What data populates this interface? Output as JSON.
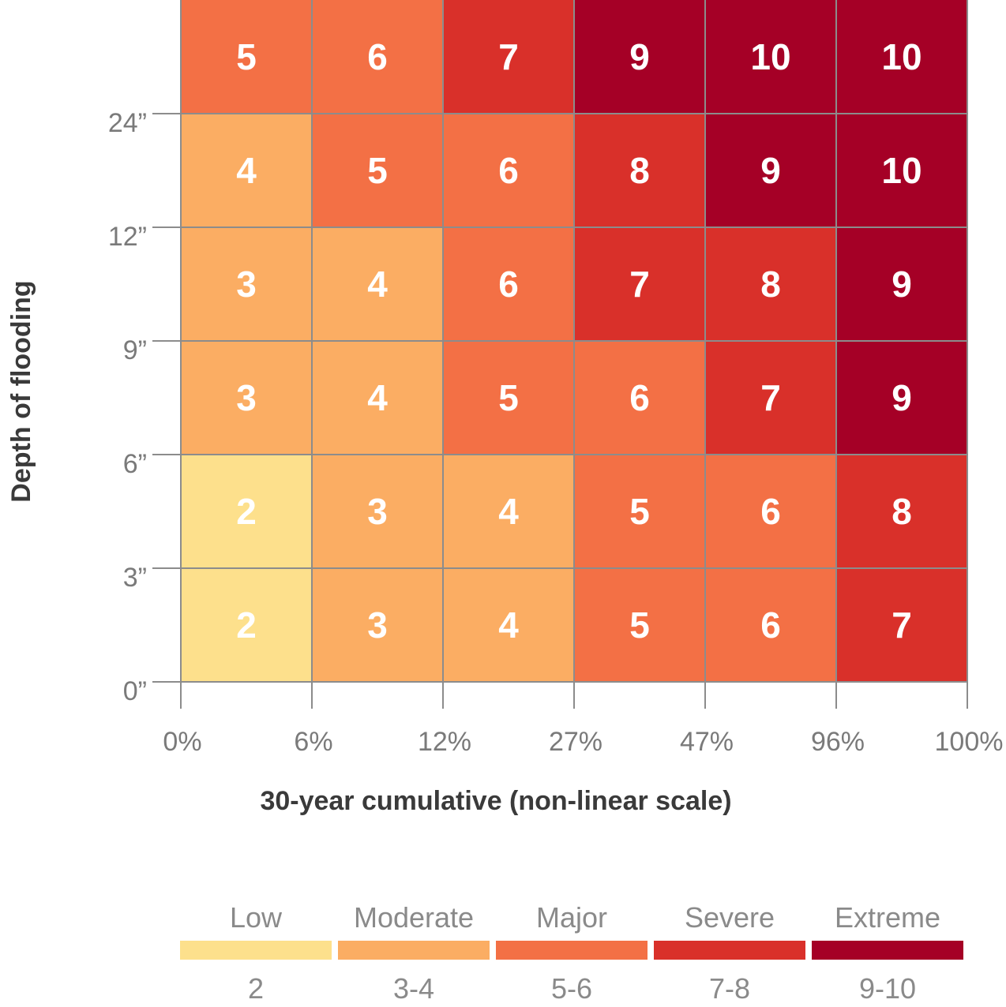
{
  "chart_data": {
    "type": "heatmap",
    "xlabel": "30-year cumulative (non-linear scale)",
    "ylabel": "Depth of flooding",
    "x_ticks": [
      "0%",
      "6%",
      "12%",
      "27%",
      "47%",
      "96%",
      "100%"
    ],
    "y_ticks": [
      "0”",
      "3”",
      "6”",
      "9”",
      "12”",
      "24”"
    ],
    "values": [
      [
        2,
        3,
        4,
        5,
        6,
        7
      ],
      [
        2,
        3,
        4,
        5,
        6,
        8
      ],
      [
        3,
        4,
        5,
        6,
        7,
        9
      ],
      [
        3,
        4,
        6,
        7,
        8,
        9
      ],
      [
        4,
        5,
        6,
        8,
        9,
        10
      ],
      [
        5,
        6,
        7,
        9,
        10,
        10
      ]
    ],
    "legend": [
      {
        "label": "Low",
        "range": "2",
        "color": "#fde08c"
      },
      {
        "label": "Moderate",
        "range": "3-4",
        "color": "#fbad63"
      },
      {
        "label": "Major",
        "range": "5-6",
        "color": "#f37045"
      },
      {
        "label": "Severe",
        "range": "7-8",
        "color": "#d9302a"
      },
      {
        "label": "Extreme",
        "range": "9-10",
        "color": "#a50026"
      }
    ]
  }
}
